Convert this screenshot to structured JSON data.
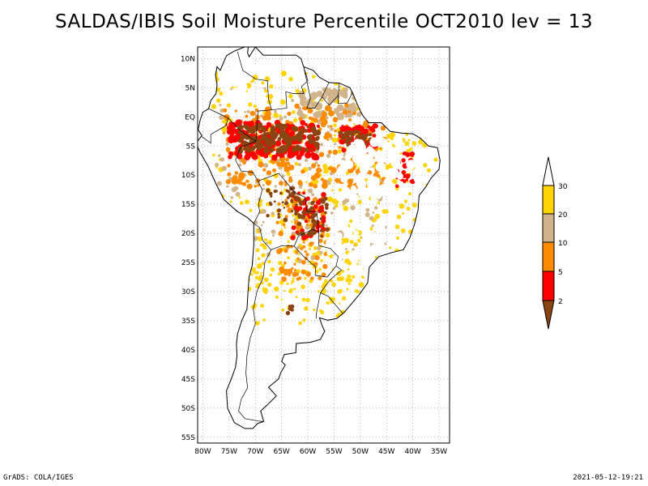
{
  "title": "SALDAS/IBIS Soil Moisture Percentile OCT2010 lev = 13",
  "footer_left": "GrADS: COLA/IGES",
  "footer_right": "2021-05-12-19:21",
  "map": {
    "lat_labels": [
      "10N",
      "5N",
      "EQ",
      "5S",
      "10S",
      "15S",
      "20S",
      "25S",
      "30S",
      "35S",
      "40S",
      "45S",
      "50S",
      "55S"
    ],
    "lat_values": [
      10,
      5,
      0,
      -5,
      -10,
      -15,
      -20,
      -25,
      -30,
      -35,
      -40,
      -45,
      -50,
      -55
    ],
    "lon_labels": [
      "80W",
      "75W",
      "70W",
      "65W",
      "60W",
      "55W",
      "50W",
      "45W",
      "40W",
      "35W"
    ],
    "lon_values": [
      -80,
      -75,
      -70,
      -65,
      -60,
      -55,
      -50,
      -45,
      -40,
      -35
    ],
    "extent": {
      "lon_min": -81,
      "lon_max": -33,
      "lat_min": -56,
      "lat_max": 12
    }
  },
  "legend": {
    "labels": [
      "30",
      "20",
      "10",
      "5",
      "2"
    ],
    "colors": {
      "above_30": "#ffffff",
      "20_30": "#ffd400",
      "10_20": "#d2b48c",
      "5_10": "#ff8c00",
      "2_5": "#ff0000",
      "below_2": "#8b4513"
    }
  }
}
